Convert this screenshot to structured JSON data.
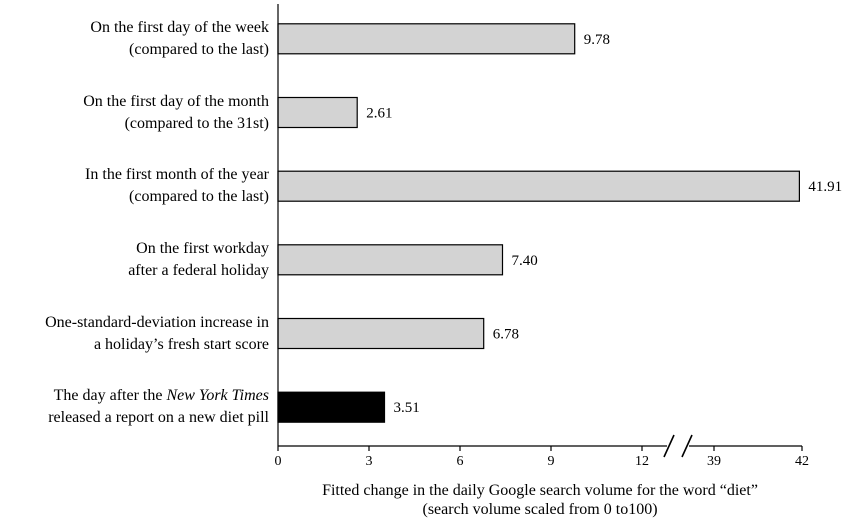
{
  "chart_data": {
    "type": "bar",
    "orientation": "horizontal",
    "categories": [
      [
        "On the first day of the week",
        "(compared to the last)"
      ],
      [
        "On the first day of the month",
        "(compared to the 31st)"
      ],
      [
        "In the first month of the year",
        "(compared to the last)"
      ],
      [
        "On the first workday",
        "after a federal holiday"
      ],
      [
        "One-standard-deviation increase in",
        "a holiday’s fresh start score"
      ],
      [
        "The day after the ",
        "New York Times",
        "released a report on a new diet pill"
      ]
    ],
    "values": [
      9.78,
      2.61,
      41.91,
      7.4,
      6.78,
      3.51
    ],
    "value_labels": [
      "9.78",
      "2.61",
      "41.91",
      "7.40",
      "6.78",
      "3.51"
    ],
    "bar_colors": [
      "#d3d3d3",
      "#d3d3d3",
      "#d3d3d3",
      "#d3d3d3",
      "#d3d3d3",
      "#000000"
    ],
    "xlabel": [
      "Fitted change in the daily Google search volume for the word “diet”",
      "(search volume scaled from 0 to100)"
    ],
    "xlim": [
      0,
      42
    ],
    "axis_break": {
      "from": 12,
      "to": 39
    },
    "xticks": [
      0,
      3,
      6,
      9,
      12,
      39,
      42
    ],
    "xtick_labels": [
      "0",
      "3",
      "6",
      "9",
      "12",
      "39",
      "42"
    ],
    "grid": false,
    "legend": "none"
  }
}
